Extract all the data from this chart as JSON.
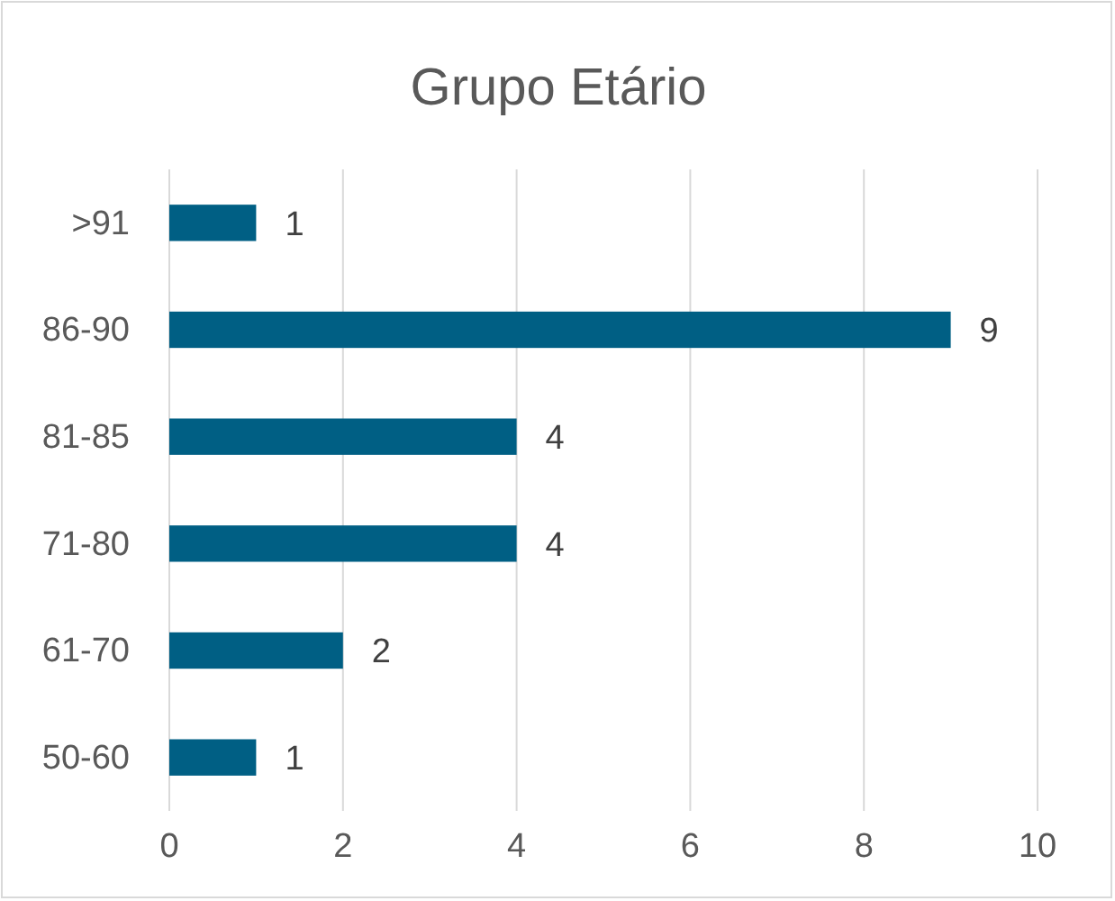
{
  "chart_data": {
    "type": "bar",
    "title": "Grupo Etário",
    "orientation": "horizontal",
    "categories": [
      ">91",
      "86-90",
      "81-85",
      "71-80",
      "61-70",
      "50-60"
    ],
    "values": [
      1,
      9,
      4,
      4,
      2,
      1
    ],
    "color": "#005f84",
    "xlim": [
      0,
      10
    ],
    "xticks": [
      0,
      2,
      4,
      6,
      8,
      10
    ],
    "grid": "x",
    "data_labels": true
  }
}
